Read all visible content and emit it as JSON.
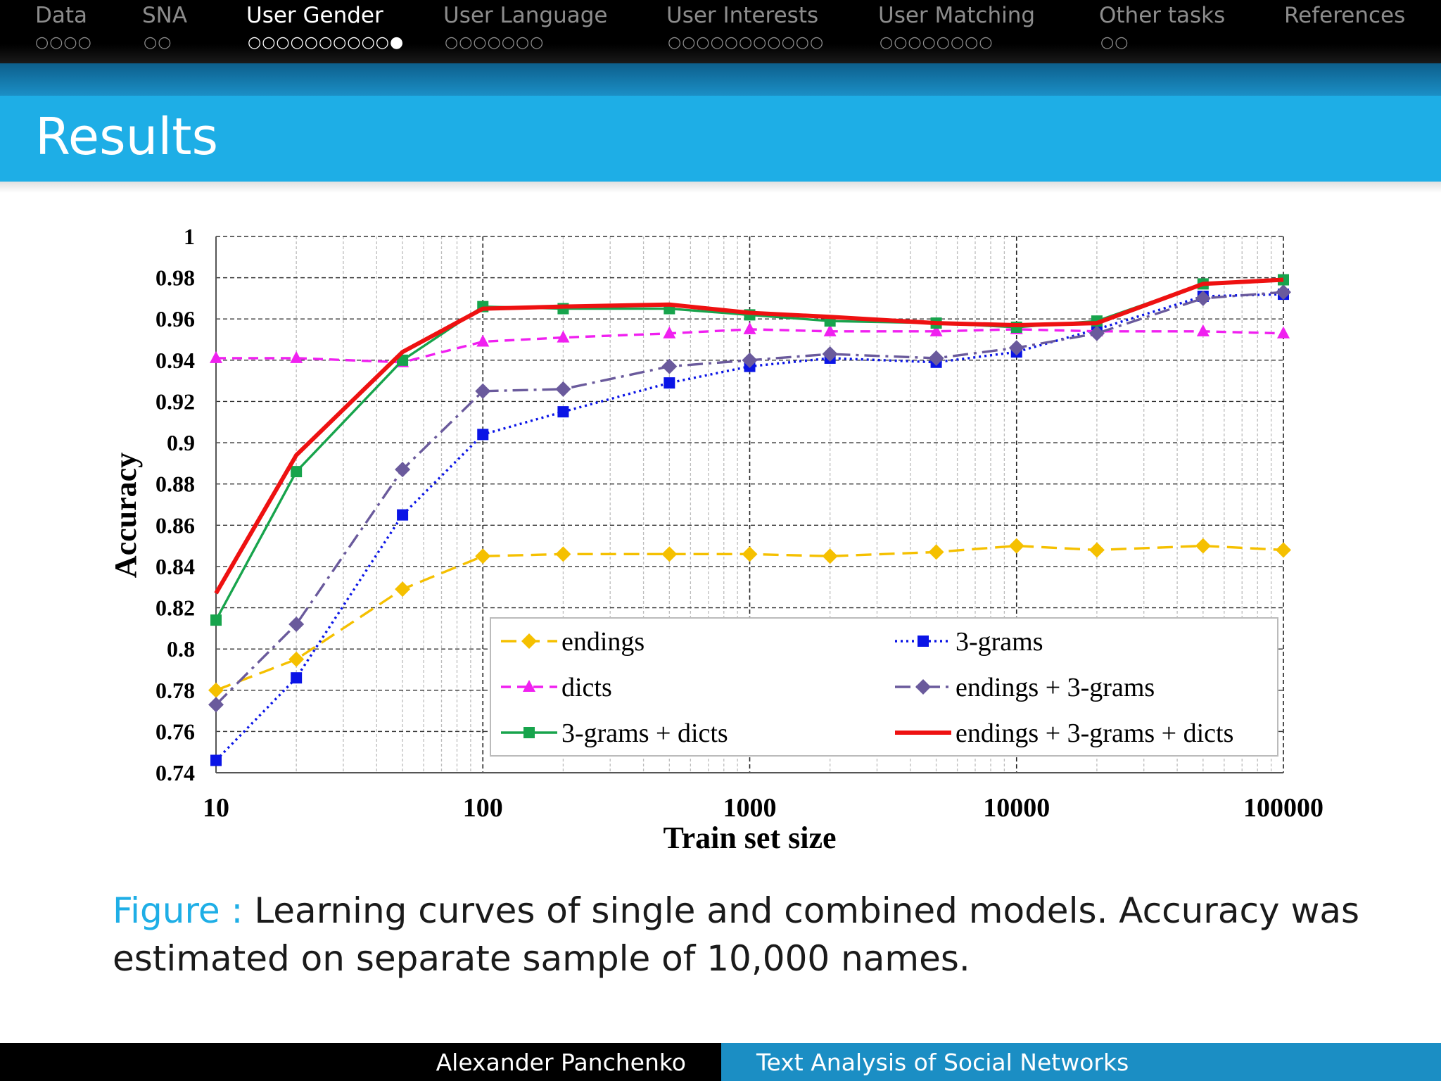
{
  "nav": {
    "sections": [
      {
        "label": "Data",
        "dots": "○○○○",
        "active": false
      },
      {
        "label": "SNA",
        "dots": "○○",
        "active": false
      },
      {
        "label": "User Gender",
        "dots": "○○○○○○○○○○●",
        "active": true
      },
      {
        "label": "User Language",
        "dots": "○○○○○○○",
        "active": false
      },
      {
        "label": "User Interests",
        "dots": "○○○○○○○○○○○",
        "active": false
      },
      {
        "label": "User Matching",
        "dots": "○○○○○○○○",
        "active": false
      },
      {
        "label": "Other tasks",
        "dots": "○○",
        "active": false
      },
      {
        "label": "References",
        "dots": "",
        "active": false
      }
    ]
  },
  "slide": {
    "title": "Results"
  },
  "caption": {
    "label": "Figure :",
    "text": "Learning curves of single and combined models. Accuracy was estimated on separate sample of 10,000 names."
  },
  "footer": {
    "author": "Alexander Panchenko",
    "talk": "Text Analysis of Social Networks"
  },
  "chart_data": {
    "type": "line",
    "xlabel": "Train set size",
    "ylabel": "Accuracy",
    "x_scale": "log",
    "xlim": [
      10,
      100000
    ],
    "ylim": [
      0.74,
      1
    ],
    "x_ticks": [
      "10",
      "100",
      "1000",
      "10000",
      "100000"
    ],
    "y_ticks": [
      "0.74",
      "0.76",
      "0.78",
      "0.8",
      "0.82",
      "0.84",
      "0.86",
      "0.88",
      "0.9",
      "0.92",
      "0.94",
      "0.96",
      "0.98",
      "1"
    ],
    "grid": true,
    "legend_position": "bottom-right",
    "x": [
      10,
      20,
      50,
      100,
      200,
      500,
      1000,
      2000,
      5000,
      10000,
      20000,
      50000,
      100000
    ],
    "series": [
      {
        "name": "endings",
        "color": "#f5c000",
        "dash": "long-dash",
        "marker": "diamond",
        "values": [
          0.78,
          0.795,
          0.829,
          0.845,
          0.846,
          0.846,
          0.846,
          0.845,
          0.847,
          0.85,
          0.848,
          0.85,
          0.848
        ]
      },
      {
        "name": "3-grams",
        "color": "#0a14e6",
        "dash": "dotted",
        "marker": "square",
        "values": [
          0.746,
          0.786,
          0.865,
          0.904,
          0.915,
          0.929,
          0.937,
          0.941,
          0.939,
          0.944,
          0.955,
          0.971,
          0.972
        ]
      },
      {
        "name": "dicts",
        "color": "#f020f0",
        "dash": "dashed",
        "marker": "triangle",
        "values": [
          0.941,
          0.941,
          0.939,
          0.949,
          0.951,
          0.953,
          0.955,
          0.954,
          0.954,
          0.955,
          0.954,
          0.954,
          0.953
        ]
      },
      {
        "name": "endings + 3-grams",
        "color": "#6a5a9c",
        "dash": "dash-dot",
        "marker": "diamond",
        "values": [
          0.773,
          0.812,
          0.887,
          0.925,
          0.926,
          0.937,
          0.94,
          0.943,
          0.941,
          0.946,
          0.953,
          0.97,
          0.973
        ]
      },
      {
        "name": "3-grams + dicts",
        "color": "#17a44c",
        "dash": "solid",
        "marker": "square",
        "values": [
          0.814,
          0.886,
          0.94,
          0.966,
          0.965,
          0.965,
          0.962,
          0.959,
          0.958,
          0.956,
          0.959,
          0.977,
          0.979
        ]
      },
      {
        "name": "endings + 3-grams + dicts",
        "color": "#ee1111",
        "dash": "solid-thick",
        "marker": "none",
        "values": [
          0.827,
          0.894,
          0.944,
          0.965,
          0.966,
          0.967,
          0.963,
          0.961,
          0.958,
          0.957,
          0.958,
          0.977,
          0.979
        ]
      }
    ]
  }
}
